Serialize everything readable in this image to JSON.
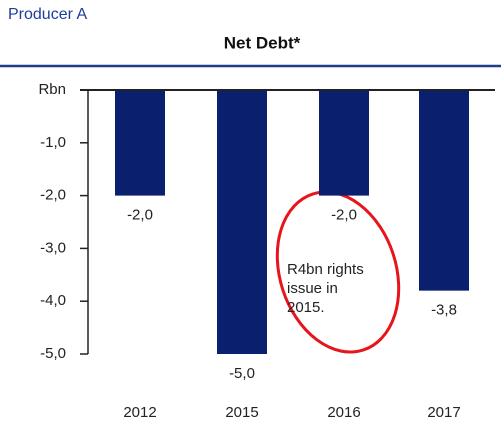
{
  "chart_data": {
    "type": "bar",
    "header": "Producer A",
    "title": "Net Debt*",
    "categories": [
      "2012",
      "2015",
      "2016",
      "2017"
    ],
    "values": [
      -2.0,
      -5.0,
      -2.0,
      -3.8
    ],
    "value_labels": [
      "-2,0",
      "-5,0",
      "-2,0",
      "-3,8"
    ],
    "color": "#0b1f6f",
    "ylim": [
      -5,
      0
    ],
    "yticks": [
      {
        "value": 0,
        "label": "Rbn"
      },
      {
        "value": -1,
        "label": "-1,0"
      },
      {
        "value": -2,
        "label": "-2,0"
      },
      {
        "value": -3,
        "label": "-3,0"
      },
      {
        "value": -4,
        "label": "-4,0"
      },
      {
        "value": -5,
        "label": "-5,0"
      }
    ],
    "annotation": [
      "R4bn rights",
      "issue in",
      "2015."
    ]
  }
}
